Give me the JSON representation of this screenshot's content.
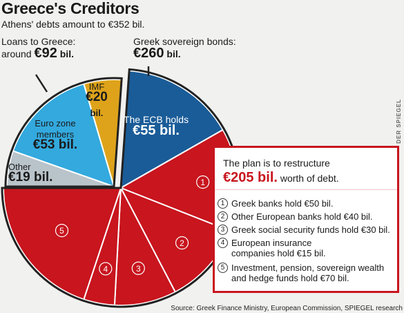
{
  "title": "Greece's Creditors",
  "subtitle": "Athens' debts amount to €352 bil.",
  "loans_label": {
    "line1": "Loans to Greece:",
    "prefix": "around ",
    "amount": "€92",
    "unit": " bil."
  },
  "bonds_label": {
    "line1": "Greek sovereign bonds:",
    "amount": "€260",
    "unit": " bil."
  },
  "colors": {
    "eurozone": "#33a9de",
    "imf": "#dea31a",
    "other": "#b9c3ca",
    "ecb": "#1a5c98",
    "restructure": "#c8151e",
    "outline": "#222222"
  },
  "chart_data": {
    "type": "pie",
    "total": 352,
    "unit": "€ bil.",
    "groups": [
      {
        "name": "Loans to Greece",
        "value": 92
      },
      {
        "name": "Greek sovereign bonds",
        "value": 260
      }
    ],
    "slices": [
      {
        "label": "Other",
        "value": 19,
        "group": "Loans to Greece",
        "text": [
          "Other",
          "€19 bil."
        ]
      },
      {
        "label": "Euro zone members",
        "value": 53,
        "group": "Loans to Greece",
        "text": [
          "Euro zone",
          "members",
          "€53 bil."
        ]
      },
      {
        "label": "IMF",
        "value": 20,
        "group": "Loans to Greece",
        "text": [
          "IMF",
          "€20",
          "bil."
        ]
      },
      {
        "label": "The ECB holds",
        "value": 55,
        "group": "Greek sovereign bonds",
        "text": [
          "The ECB holds",
          "€55 bil."
        ]
      },
      {
        "label": "1",
        "value": 50,
        "group": "Greek sovereign bonds"
      },
      {
        "label": "2",
        "value": 40,
        "group": "Greek sovereign bonds"
      },
      {
        "label": "3",
        "value": 30,
        "group": "Greek sovereign bonds"
      },
      {
        "label": "4",
        "value": 15,
        "group": "Greek sovereign bonds"
      },
      {
        "label": "5",
        "value": 70,
        "group": "Greek sovereign bonds"
      }
    ]
  },
  "plan": {
    "intro": "The plan is to restructure",
    "amount": "€205 bil.",
    "suffix": " worth of debt.",
    "items": [
      {
        "num": "1",
        "text": "Greek banks hold €50 bil."
      },
      {
        "num": "2",
        "text": "Other European banks hold €40 bil."
      },
      {
        "num": "3",
        "text": "Greek social security funds hold €30 bil."
      },
      {
        "num": "4",
        "text": "European insurance companies hold €15 bil."
      },
      {
        "num": "5",
        "text": "Investment, pension, sovereign wealth and hedge funds hold €70 bil."
      }
    ]
  },
  "side_label": "DER SPIEGEL",
  "source": "Source: Greek Finance Ministry, European Commission, SPIEGEL research"
}
